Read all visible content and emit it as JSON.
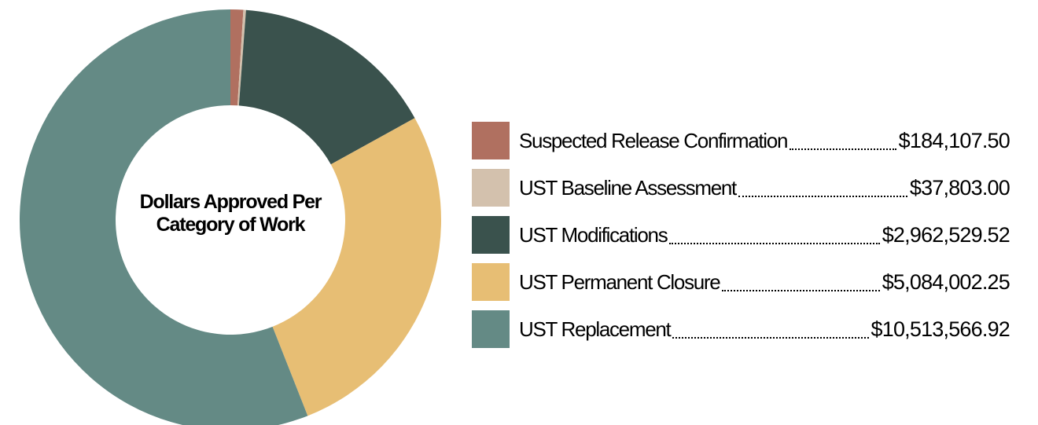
{
  "chart_data": {
    "type": "pie",
    "donut": true,
    "title": "Dollars Approved Per Category of Work",
    "categories": [
      "Suspected Release Confirmation",
      "UST Baseline Assessment",
      "UST Modifications",
      "UST Permanent Closure",
      "UST Replacement"
    ],
    "values": [
      184107.5,
      37803.0,
      2962529.52,
      5084002.25,
      10513566.92
    ],
    "value_labels": [
      "$184,107.50",
      "$37,803.00",
      "$2,962,529.52",
      "$5,084,002.25",
      "$10,513,566.92"
    ],
    "colors": [
      "#b07060",
      "#d3c1ad",
      "#3a524d",
      "#e7be74",
      "#648a85"
    ]
  }
}
